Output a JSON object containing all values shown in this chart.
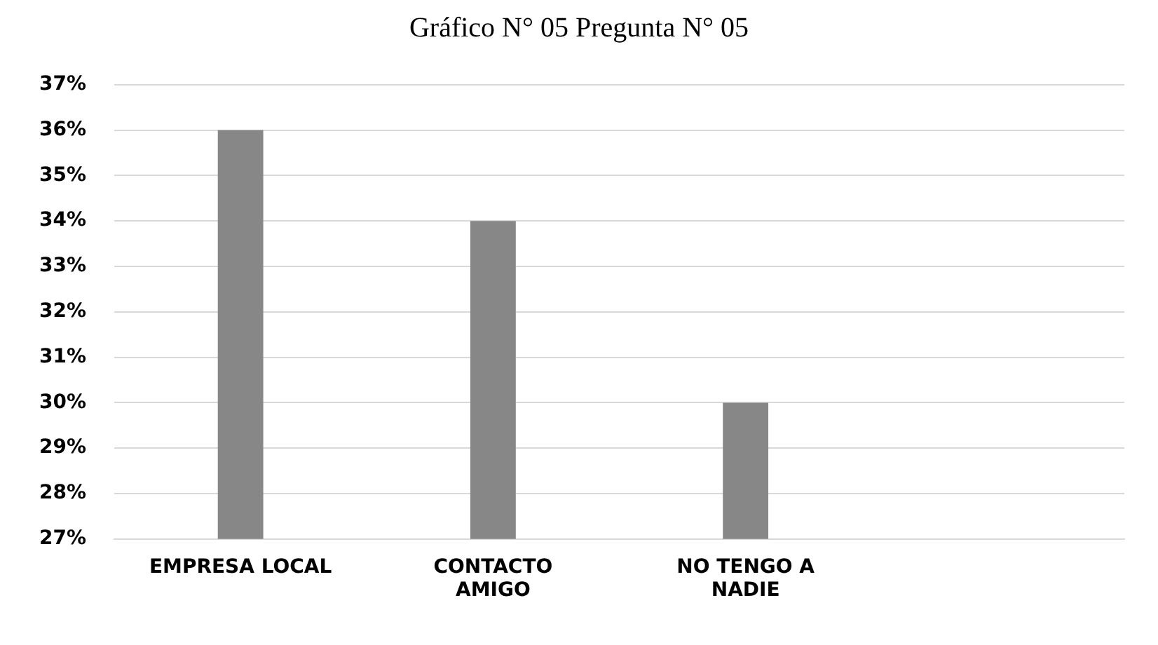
{
  "chart_data": {
    "type": "bar",
    "title": "Gráfico N° 05 Pregunta N° 05",
    "categories": [
      "EMPRESA LOCAL",
      "CONTACTO AMIGO",
      "NO TENGO A NADIE",
      null
    ],
    "values": [
      36,
      34,
      30,
      null
    ],
    "color": "#878787",
    "ylim": [
      27,
      37
    ],
    "yticks": [
      {
        "value": 27,
        "label": "27%"
      },
      {
        "value": 28,
        "label": "28%"
      },
      {
        "value": 29,
        "label": "29%"
      },
      {
        "value": 30,
        "label": "30%"
      },
      {
        "value": 31,
        "label": "31%"
      },
      {
        "value": 32,
        "label": "32%"
      },
      {
        "value": 33,
        "label": "33%"
      },
      {
        "value": 34,
        "label": "34%"
      },
      {
        "value": 35,
        "label": "35%"
      },
      {
        "value": 36,
        "label": "36%"
      },
      {
        "value": 37,
        "label": "37%"
      }
    ],
    "grid": "y"
  }
}
